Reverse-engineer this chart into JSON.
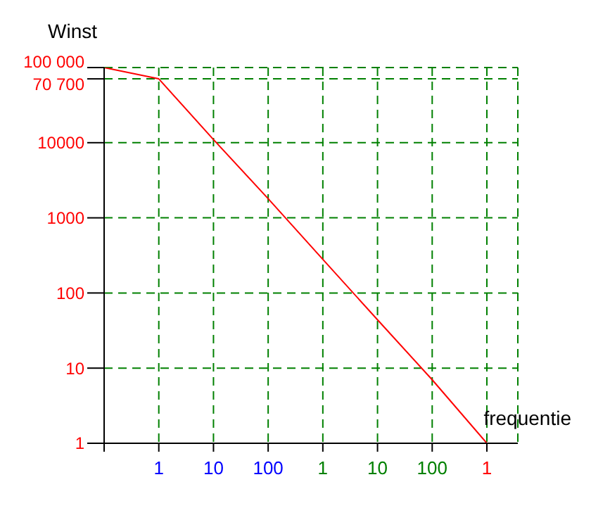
{
  "chart_data": {
    "type": "line",
    "xlabel": "frequentie",
    "ylabel": "Winst",
    "categories": [
      null,
      "1",
      "10",
      "100",
      "1",
      "10",
      "100",
      "1"
    ],
    "ylim": [
      1,
      100000
    ],
    "yticks": [
      1,
      10,
      100,
      1000,
      10000,
      {
        "value": 70700,
        "label": "70 700"
      },
      {
        "value": 100000,
        "label": "100 000"
      }
    ],
    "log": "y",
    "grid": true,
    "marker": "none",
    "line_style": "solid",
    "series": [
      {
        "color": "#ff0000",
        "values": [
          100000,
          70700,
          11000,
          1800,
          280,
          44,
          7,
          1
        ]
      }
    ]
  }
}
